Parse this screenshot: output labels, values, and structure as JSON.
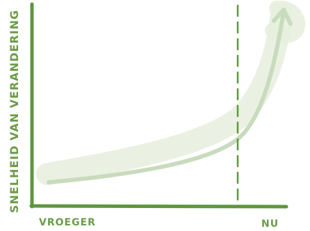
{
  "chart_data": {
    "type": "line",
    "xlabel_left": "VROEGER",
    "xlabel_right": "NU",
    "ylabel": "SNELHEID VAN VERANDERING",
    "marker_line": {
      "style": "dashed",
      "position": "NU"
    },
    "trend": "exponential-increase",
    "arrow": true,
    "colors": {
      "axis": "#5e963f",
      "label": "#6b9b4a",
      "curve": "#c9dbbd",
      "band": "#e6eede",
      "marker": "#5e963f"
    }
  }
}
